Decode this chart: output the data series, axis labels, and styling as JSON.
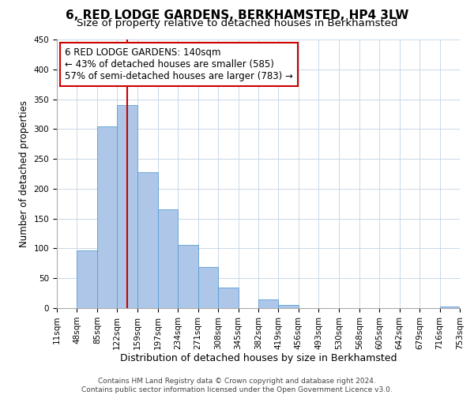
{
  "title": "6, RED LODGE GARDENS, BERKHAMSTED, HP4 3LW",
  "subtitle": "Size of property relative to detached houses in Berkhamsted",
  "xlabel": "Distribution of detached houses by size in Berkhamsted",
  "ylabel": "Number of detached properties",
  "bin_edges": [
    11,
    48,
    85,
    122,
    159,
    197,
    234,
    271,
    308,
    345,
    382,
    419,
    456,
    493,
    530,
    568,
    605,
    642,
    679,
    716,
    753
  ],
  "bar_heights": [
    0,
    97,
    305,
    340,
    228,
    165,
    106,
    69,
    34,
    0,
    14,
    5,
    0,
    0,
    0,
    0,
    0,
    0,
    0,
    3
  ],
  "bar_color": "#aec6e8",
  "bar_edge_color": "#5a9fd4",
  "property_value": 140,
  "vline_color": "#cc0000",
  "annotation_line1": "6 RED LODGE GARDENS: 140sqm",
  "annotation_line2": "← 43% of detached houses are smaller (585)",
  "annotation_line3": "57% of semi-detached houses are larger (783) →",
  "annotation_box_color": "#ffffff",
  "annotation_box_edge_color": "#cc0000",
  "ylim": [
    0,
    450
  ],
  "yticks": [
    0,
    50,
    100,
    150,
    200,
    250,
    300,
    350,
    400,
    450
  ],
  "footnote1": "Contains HM Land Registry data © Crown copyright and database right 2024.",
  "footnote2": "Contains public sector information licensed under the Open Government Licence v3.0.",
  "background_color": "#ffffff",
  "grid_color": "#c8d8e8",
  "title_fontsize": 11,
  "subtitle_fontsize": 9.5,
  "xlabel_fontsize": 9,
  "ylabel_fontsize": 8.5,
  "tick_label_fontsize": 7.5,
  "annotation_fontsize": 8.5,
  "footnote_fontsize": 6.5
}
